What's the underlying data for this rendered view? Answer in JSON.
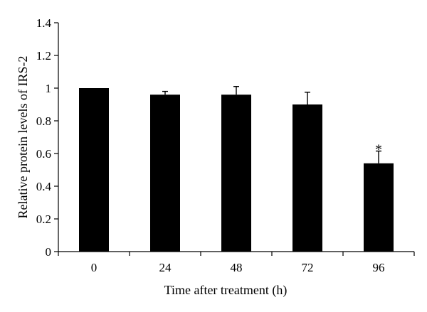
{
  "chart_data": {
    "type": "bar",
    "categories": [
      "0",
      "24",
      "48",
      "72",
      "96"
    ],
    "values": [
      1.0,
      0.96,
      0.96,
      0.9,
      0.54
    ],
    "error_bars": [
      0.0,
      0.02,
      0.05,
      0.075,
      0.075
    ],
    "annotations": [
      "",
      "",
      "",
      "",
      "*"
    ],
    "xlabel": "Time after treatment (h)",
    "ylabel": "Relative protein levels of IRS-2",
    "ylim": [
      0,
      1.4
    ],
    "yticks": [
      0,
      0.2,
      0.4,
      0.6,
      0.8,
      1,
      1.2,
      1.4
    ],
    "ytick_labels": [
      "0",
      "0.2",
      "0.4",
      "0.6",
      "0.8",
      "1",
      "1.2",
      "1.4"
    ],
    "grid": false,
    "bar_color": "#000000"
  }
}
